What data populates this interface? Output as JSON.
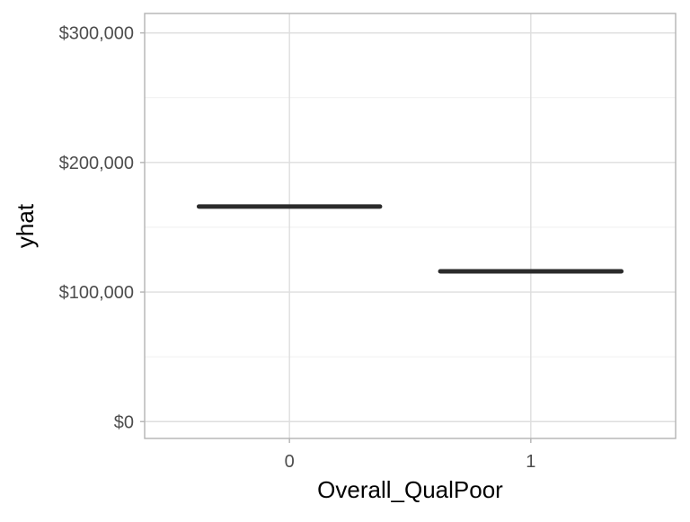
{
  "chart_data": {
    "type": "line",
    "title": "",
    "xlabel": "Overall_QualPoor",
    "ylabel": "yhat",
    "categories": [
      "0",
      "1"
    ],
    "values": [
      166000,
      116000
    ],
    "ylim": [
      -13000,
      315000
    ],
    "y_ticks": [
      0,
      100000,
      200000,
      300000
    ],
    "y_tick_labels": [
      "$0",
      "$100,000",
      "$200,000",
      "$300,000"
    ],
    "grid": true,
    "legend": "none",
    "colors": {
      "line": "#2b2b2b",
      "panel_border": "#b3b3b3",
      "grid": "#dedede"
    }
  }
}
